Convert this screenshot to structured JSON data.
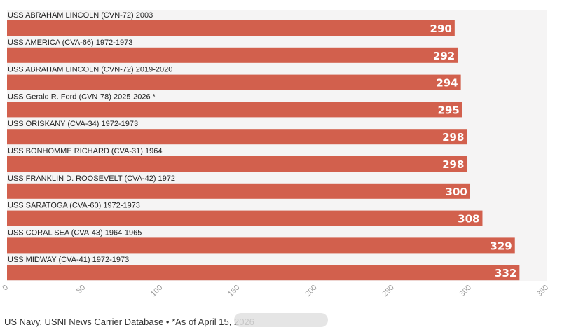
{
  "colors": {
    "bar": "#d2604d",
    "plot_bg": "#f5f4f4",
    "value_text": "#ffffff",
    "label_text": "#222222",
    "tick_text": "#999999"
  },
  "chart_data": {
    "type": "bar",
    "orientation": "horizontal",
    "title": "",
    "xlabel": "",
    "ylabel": "",
    "xlim": [
      0,
      350
    ],
    "ticks": [
      0,
      50,
      100,
      150,
      200,
      250,
      300,
      350
    ],
    "grid": false,
    "categories": [
      "USS ABRAHAM LINCOLN (CVN-72) 2003",
      "USS AMERICA (CVA-66) 1972-1973",
      "USS ABRAHAM LINCOLN (CVN-72) 2019-2020",
      "USS Gerald R. Ford (CVN-78) 2025-2026 *",
      "USS ORISKANY (CVA-34) 1972-1973",
      "USS BONHOMME RICHARD (CVA-31) 1964",
      "USS FRANKLIN D. ROOSEVELT (CVA-42) 1972",
      "USS SARATOGA (CVA-60) 1972-1973",
      "USS CORAL SEA (CVA-43) 1964-1965",
      "USS MIDWAY (CVA-41) 1972-1973"
    ],
    "values": [
      290,
      292,
      294,
      295,
      298,
      298,
      300,
      308,
      329,
      332
    ]
  },
  "footer": {
    "source": "US Navy, USNI News Carrier Database • *As of April 15, 2026"
  }
}
